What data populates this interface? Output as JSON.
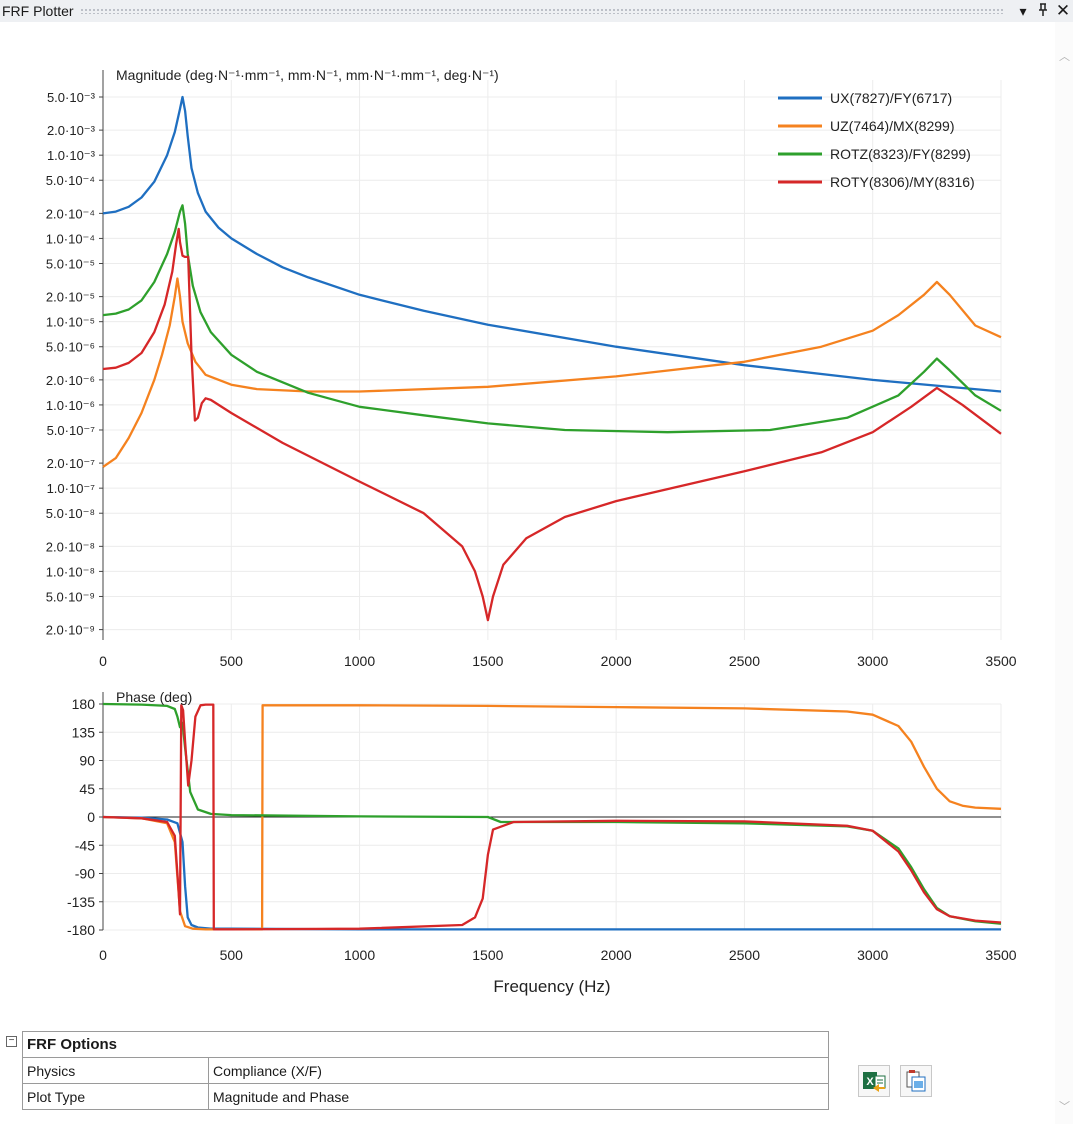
{
  "window": {
    "title": "FRF Plotter",
    "dropdown_icon": "dropdown-arrow-icon",
    "pin_icon": "pin-icon",
    "close_icon": "close-icon"
  },
  "chart_data": [
    {
      "type": "line",
      "title": "Magnitude (deg·N⁻¹·mm⁻¹, mm·N⁻¹, mm·N⁻¹·mm⁻¹, deg·N⁻¹)",
      "xlabel": "",
      "ylabel": "",
      "y_scale": "log",
      "xlim": [
        0,
        3500
      ],
      "ylim": [
        1.5e-09,
        0.008
      ],
      "x_ticks": [
        "0",
        "500",
        "1000",
        "1500",
        "2000",
        "2500",
        "3000",
        "3500"
      ],
      "y_ticks": [
        {
          "value": 0.005,
          "label": "5.0·10⁻³"
        },
        {
          "value": 0.002,
          "label": "2.0·10⁻³"
        },
        {
          "value": 0.001,
          "label": "1.0·10⁻³"
        },
        {
          "value": 0.0005,
          "label": "5.0·10⁻⁴"
        },
        {
          "value": 0.0002,
          "label": "2.0·10⁻⁴"
        },
        {
          "value": 0.0001,
          "label": "1.0·10⁻⁴"
        },
        {
          "value": 5e-05,
          "label": "5.0·10⁻⁵"
        },
        {
          "value": 2e-05,
          "label": "2.0·10⁻⁵"
        },
        {
          "value": 1e-05,
          "label": "1.0·10⁻⁵"
        },
        {
          "value": 5e-06,
          "label": "5.0·10⁻⁶"
        },
        {
          "value": 2e-06,
          "label": "2.0·10⁻⁶"
        },
        {
          "value": 1e-06,
          "label": "1.0·10⁻⁶"
        },
        {
          "value": 5e-07,
          "label": "5.0·10⁻⁷"
        },
        {
          "value": 2e-07,
          "label": "2.0·10⁻⁷"
        },
        {
          "value": 1e-07,
          "label": "1.0·10⁻⁷"
        },
        {
          "value": 5e-08,
          "label": "5.0·10⁻⁸"
        },
        {
          "value": 2e-08,
          "label": "2.0·10⁻⁸"
        },
        {
          "value": 1e-08,
          "label": "1.0·10⁻⁸"
        },
        {
          "value": 5e-09,
          "label": "5.0·10⁻⁹"
        },
        {
          "value": 2e-09,
          "label": "2.0·10⁻⁹"
        }
      ],
      "grid": true,
      "legend_position": "top-right",
      "series": [
        {
          "name": "UX(7827)/FY(6717)",
          "color": "#1f6fc1",
          "x": [
            0,
            50,
            100,
            150,
            200,
            250,
            280,
            300,
            310,
            320,
            330,
            345,
            370,
            400,
            450,
            500,
            600,
            700,
            800,
            1000,
            1250,
            1500,
            2000,
            2500,
            3000,
            3500
          ],
          "y": [
            0.0002,
            0.00021,
            0.00024,
            0.00031,
            0.00048,
            0.001,
            0.0019,
            0.0036,
            0.005,
            0.0034,
            0.0017,
            0.0007,
            0.00035,
            0.00021,
            0.000135,
            0.0001,
            6.5e-05,
            4.5e-05,
            3.4e-05,
            2.1e-05,
            1.35e-05,
            9.2e-06,
            5e-06,
            3e-06,
            2e-06,
            1.45e-06
          ]
        },
        {
          "name": "UZ(7464)/MX(8299)",
          "color": "#f5821f",
          "x": [
            0,
            50,
            100,
            150,
            200,
            230,
            260,
            280,
            290,
            300,
            310,
            330,
            360,
            400,
            500,
            600,
            800,
            1000,
            1500,
            2000,
            2500,
            2800,
            3000,
            3100,
            3200,
            3250,
            3300,
            3400,
            3500
          ],
          "y": [
            1.8e-07,
            2.3e-07,
            4e-07,
            8e-07,
            2e-06,
            4e-06,
            9e-06,
            2e-05,
            3.3e-05,
            2e-05,
            1e-05,
            5.5e-06,
            3.3e-06,
            2.3e-06,
            1.75e-06,
            1.55e-06,
            1.45e-06,
            1.45e-06,
            1.65e-06,
            2.2e-06,
            3.3e-06,
            5e-06,
            7.8e-06,
            1.2e-05,
            2.1e-05,
            3e-05,
            2.1e-05,
            9e-06,
            6.5e-06
          ]
        },
        {
          "name": "ROTZ(8323)/FY(8299)",
          "color": "#2ea02c",
          "x": [
            0,
            50,
            100,
            150,
            200,
            250,
            280,
            300,
            310,
            320,
            330,
            350,
            380,
            420,
            500,
            600,
            800,
            1000,
            1250,
            1500,
            1800,
            2200,
            2600,
            2900,
            3100,
            3200,
            3250,
            3300,
            3400,
            3500
          ],
          "y": [
            1.2e-05,
            1.25e-05,
            1.4e-05,
            1.8e-05,
            3e-05,
            6.5e-05,
            0.00012,
            0.00021,
            0.00025,
            0.00015,
            6.5e-05,
            2.7e-05,
            1.3e-05,
            7.5e-06,
            4e-06,
            2.5e-06,
            1.4e-06,
            9.5e-07,
            7.5e-07,
            6e-07,
            5e-07,
            4.7e-07,
            5e-07,
            7e-07,
            1.3e-06,
            2.5e-06,
            3.6e-06,
            2.6e-06,
            1.3e-06,
            8.5e-07
          ]
        },
        {
          "name": "ROTY(8306)/MY(8316)",
          "color": "#d62728",
          "x": [
            0,
            50,
            100,
            150,
            200,
            240,
            270,
            285,
            295,
            300,
            310,
            320,
            332,
            345,
            358,
            370,
            385,
            400,
            420,
            500,
            700,
            1000,
            1250,
            1400,
            1450,
            1480,
            1500,
            1520,
            1560,
            1650,
            1800,
            2000,
            2500,
            2800,
            3000,
            3150,
            3250,
            3350,
            3500
          ],
          "y": [
            2.7e-06,
            2.8e-06,
            3.2e-06,
            4.2e-06,
            7.5e-06,
            1.6e-05,
            4e-05,
            8.5e-05,
            0.00013,
            9e-05,
            6.2e-05,
            6e-05,
            6e-05,
            4e-06,
            6.5e-07,
            7e-07,
            1.05e-06,
            1.2e-06,
            1.15e-06,
            8e-07,
            3.5e-07,
            1.2e-07,
            5e-08,
            2e-08,
            1e-08,
            5e-09,
            2.6e-09,
            5e-09,
            1.2e-08,
            2.5e-08,
            4.5e-08,
            7e-08,
            1.6e-07,
            2.7e-07,
            4.7e-07,
            9.5e-07,
            1.6e-06,
            1e-06,
            4.5e-07
          ]
        }
      ]
    },
    {
      "type": "line",
      "title": "Phase (deg)",
      "xlabel": "Frequency (Hz)",
      "ylabel": "",
      "xlim": [
        0,
        3500
      ],
      "ylim": [
        -180,
        180
      ],
      "x_ticks": [
        "0",
        "500",
        "1000",
        "1500",
        "2000",
        "2500",
        "3000",
        "3500"
      ],
      "y_ticks": [
        {
          "value": 180,
          "label": "180"
        },
        {
          "value": 135,
          "label": "135"
        },
        {
          "value": 90,
          "label": "90"
        },
        {
          "value": 45,
          "label": "45"
        },
        {
          "value": 0,
          "label": "0"
        },
        {
          "value": -45,
          "label": "-45"
        },
        {
          "value": -90,
          "label": "-90"
        },
        {
          "value": -135,
          "label": "-135"
        },
        {
          "value": -180,
          "label": "-180"
        }
      ],
      "grid": true,
      "series": [
        {
          "name": "UX(7827)/FY(6717)",
          "color": "#1f6fc1",
          "x": [
            0,
            150,
            250,
            290,
            310,
            320,
            330,
            345,
            370,
            420,
            500,
            1000,
            2000,
            3000,
            3500
          ],
          "y": [
            0,
            -1,
            -4,
            -10,
            -40,
            -110,
            -160,
            -172,
            -176,
            -178,
            -178,
            -179,
            -179,
            -179,
            -179
          ]
        },
        {
          "name": "UZ(7464)/MX(8299)",
          "color": "#f5821f",
          "x": [
            0,
            150,
            250,
            280,
            300,
            320,
            350,
            400,
            500,
            620,
            622,
            1000,
            1500,
            2000,
            2500,
            2900,
            3000,
            3100,
            3150,
            3200,
            3250,
            3300,
            3350,
            3400,
            3500
          ],
          "y": [
            0,
            -2,
            -10,
            -40,
            -150,
            -174,
            -178,
            -179,
            -179,
            -179,
            178,
            178,
            177,
            175,
            173,
            168,
            163,
            145,
            120,
            80,
            45,
            25,
            18,
            15,
            13
          ]
        },
        {
          "name": "ROTZ(8323)/FY(8299)",
          "color": "#2ea02c",
          "x": [
            0,
            150,
            250,
            280,
            290,
            300,
            310,
            320,
            340,
            370,
            420,
            500,
            1000,
            1500,
            1550,
            2000,
            2500,
            2900,
            3000,
            3100,
            3150,
            3200,
            3250,
            3300,
            3400,
            3500
          ],
          "y": [
            180,
            179,
            177,
            172,
            160,
            143,
            150,
            110,
            40,
            12,
            5,
            3,
            1,
            0,
            -8,
            -8,
            -10,
            -15,
            -22,
            -50,
            -80,
            -115,
            -145,
            -158,
            -166,
            -170
          ]
        },
        {
          "name": "ROTY(8306)/MY(8316)",
          "color": "#d62728",
          "x": [
            0,
            150,
            250,
            280,
            295,
            300,
            305,
            312,
            320,
            332,
            345,
            360,
            380,
            400,
            430,
            432,
            500,
            1000,
            1400,
            1450,
            1480,
            1500,
            1520,
            1600,
            2000,
            2500,
            2900,
            3000,
            3100,
            3150,
            3200,
            3250,
            3300,
            3400,
            3500
          ],
          "y": [
            0,
            -2,
            -8,
            -30,
            -120,
            -155,
            178,
            170,
            120,
            50,
            90,
            160,
            178,
            179,
            179,
            -179,
            -179,
            -178,
            -172,
            -160,
            -130,
            -60,
            -20,
            -8,
            -6,
            -7,
            -14,
            -22,
            -55,
            -85,
            -120,
            -147,
            -158,
            -165,
            -168
          ]
        }
      ]
    }
  ],
  "frf_options": {
    "header": "FRF Options",
    "rows": [
      {
        "label": "Physics",
        "value": "Compliance (X/F)"
      },
      {
        "label": "Plot Type",
        "value": "Magnitude and Phase"
      }
    ]
  },
  "actions": {
    "excel_icon": "excel-export-icon",
    "copy_icon": "copy-image-icon"
  }
}
